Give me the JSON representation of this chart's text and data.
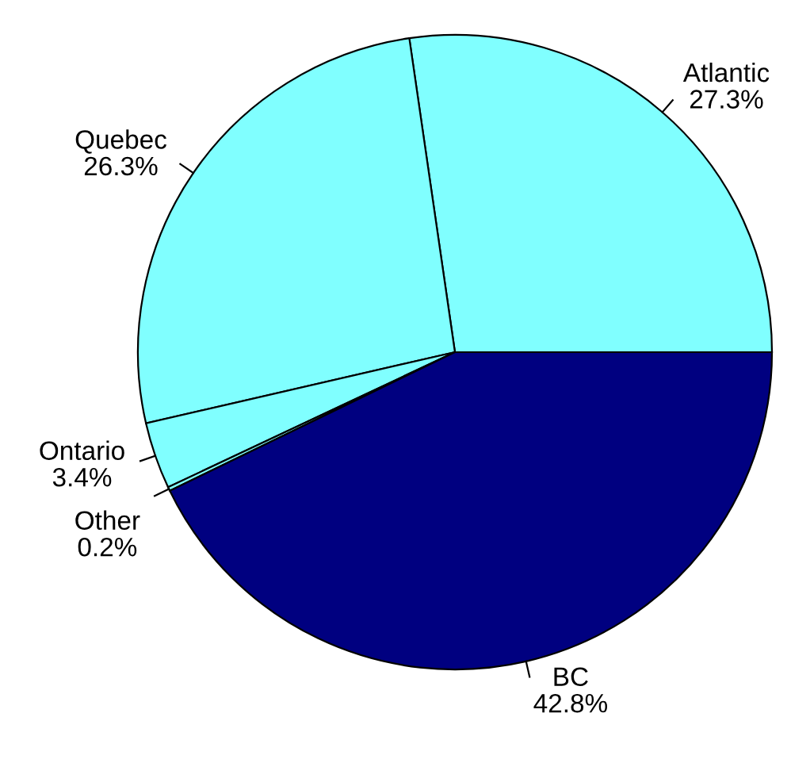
{
  "chart_data": {
    "type": "pie",
    "categories": [
      "Atlantic",
      "Quebec",
      "Ontario",
      "Other",
      "BC"
    ],
    "values": [
      27.3,
      26.3,
      3.4,
      0.2,
      42.8
    ],
    "value_labels": [
      "27.3%",
      "26.3%",
      "3.4%",
      "0.2%",
      "42.8%"
    ],
    "colors": [
      "#80ffff",
      "#80ffff",
      "#80ffff",
      "#80ffff",
      "#000080"
    ],
    "legend": false
  }
}
